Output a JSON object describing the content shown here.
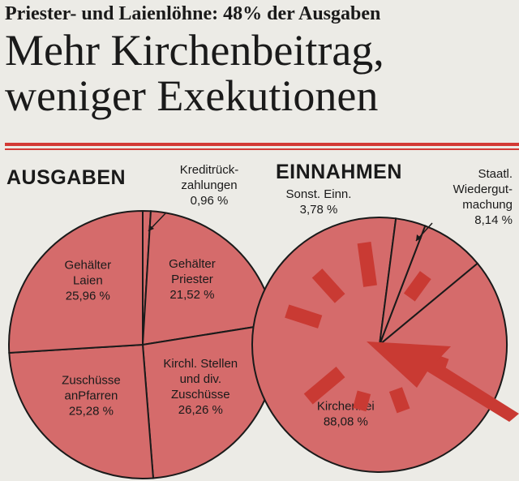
{
  "header": {
    "kicker": "Priester- und Laienlöhne: 48% der Ausgaben",
    "headline_line1": "Mehr Kirchenbeitrag,",
    "headline_line2": "weniger Exekutionen"
  },
  "colors": {
    "slice": "#d56b6b",
    "rule": "#d33a35",
    "burst": "#c93a33",
    "line": "#1a1a1a"
  },
  "chart_data": [
    {
      "type": "pie",
      "title": "AUSGABEN",
      "slices": [
        {
          "label": "Kreditrückzahlungen",
          "label_lines": [
            "Kreditrück-",
            "zahlungen",
            "0,96 %"
          ],
          "value": 0.96
        },
        {
          "label": "Gehälter Priester",
          "label_lines": [
            "Gehälter",
            "Priester",
            "21,52 %"
          ],
          "value": 21.52
        },
        {
          "label": "Kirchl. Stellen und div. Zuschüsse",
          "label_lines": [
            "Kirchl. Stellen",
            "und div.",
            "Zuschüsse",
            "26,26 %"
          ],
          "value": 26.26
        },
        {
          "label": "Zuschüsse anPfarren",
          "label_lines": [
            "Zuschüsse",
            "anPfarren",
            "25,28 %"
          ],
          "value": 25.28
        },
        {
          "label": "Gehälter Laien",
          "label_lines": [
            "Gehälter",
            "Laien",
            "25,96 %"
          ],
          "value": 25.96
        }
      ]
    },
    {
      "type": "pie",
      "title": "EINNAHMEN",
      "slices": [
        {
          "label": "Staatl. Wiedergutmachung",
          "label_lines": [
            "Staatl.",
            "Wiedergut-",
            "machung",
            "8,14 %"
          ],
          "value": 8.14
        },
        {
          "label": "Kirchenbeitrag",
          "label_lines": [
            "Kirchenbei",
            "88,08 %"
          ],
          "value": 88.08
        },
        {
          "label": "Sonst. Einn.",
          "label_lines": [
            "Sonst. Einn.",
            "3,78 %"
          ],
          "value": 3.78
        }
      ]
    }
  ]
}
